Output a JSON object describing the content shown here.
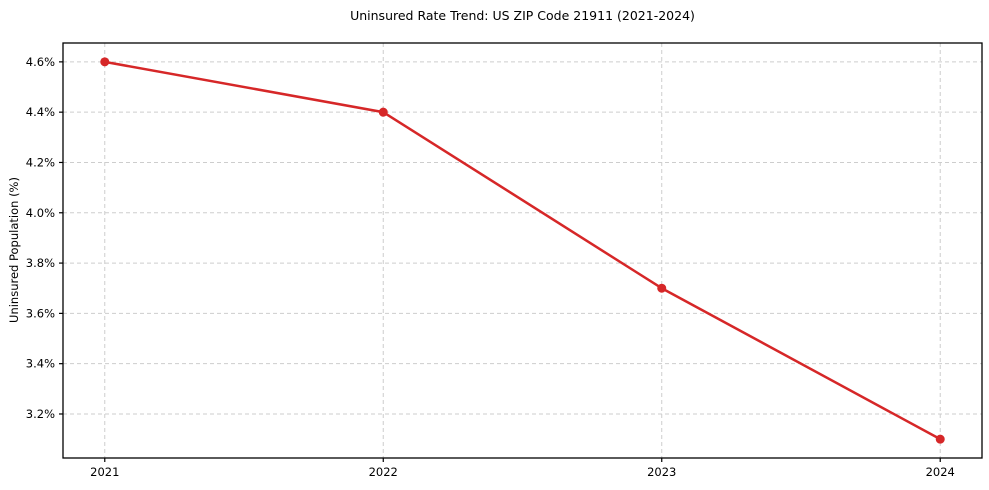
{
  "chart_data": {
    "type": "line",
    "title": "Uninsured Rate Trend: US ZIP Code 21911 (2021-2024)",
    "xlabel": "",
    "ylabel": "Uninsured Population (%)",
    "x": [
      2021,
      2022,
      2023,
      2024
    ],
    "series": [
      {
        "name": "Uninsured rate",
        "values": [
          4.6,
          4.4,
          3.7,
          3.1
        ]
      }
    ],
    "xticks": [
      2021,
      2022,
      2023,
      2024
    ],
    "xtick_labels": [
      "2021",
      "2022",
      "2023",
      "2024"
    ],
    "yticks": [
      3.2,
      3.4,
      3.6,
      3.8,
      4.0,
      4.2,
      4.4,
      4.6
    ],
    "ytick_labels": [
      "3.2%",
      "3.4%",
      "3.6%",
      "3.8%",
      "4.0%",
      "4.2%",
      "4.4%",
      "4.6%"
    ],
    "xlim": [
      2020.85,
      2024.15
    ],
    "ylim": [
      3.025,
      4.675
    ],
    "grid": true,
    "grid_style": "dashed",
    "legend": "none",
    "colors": {
      "line": "#d62728",
      "marker": "#d62728",
      "grid": "#cdcdcd",
      "spine": "#000000",
      "background": "#ffffff"
    }
  }
}
